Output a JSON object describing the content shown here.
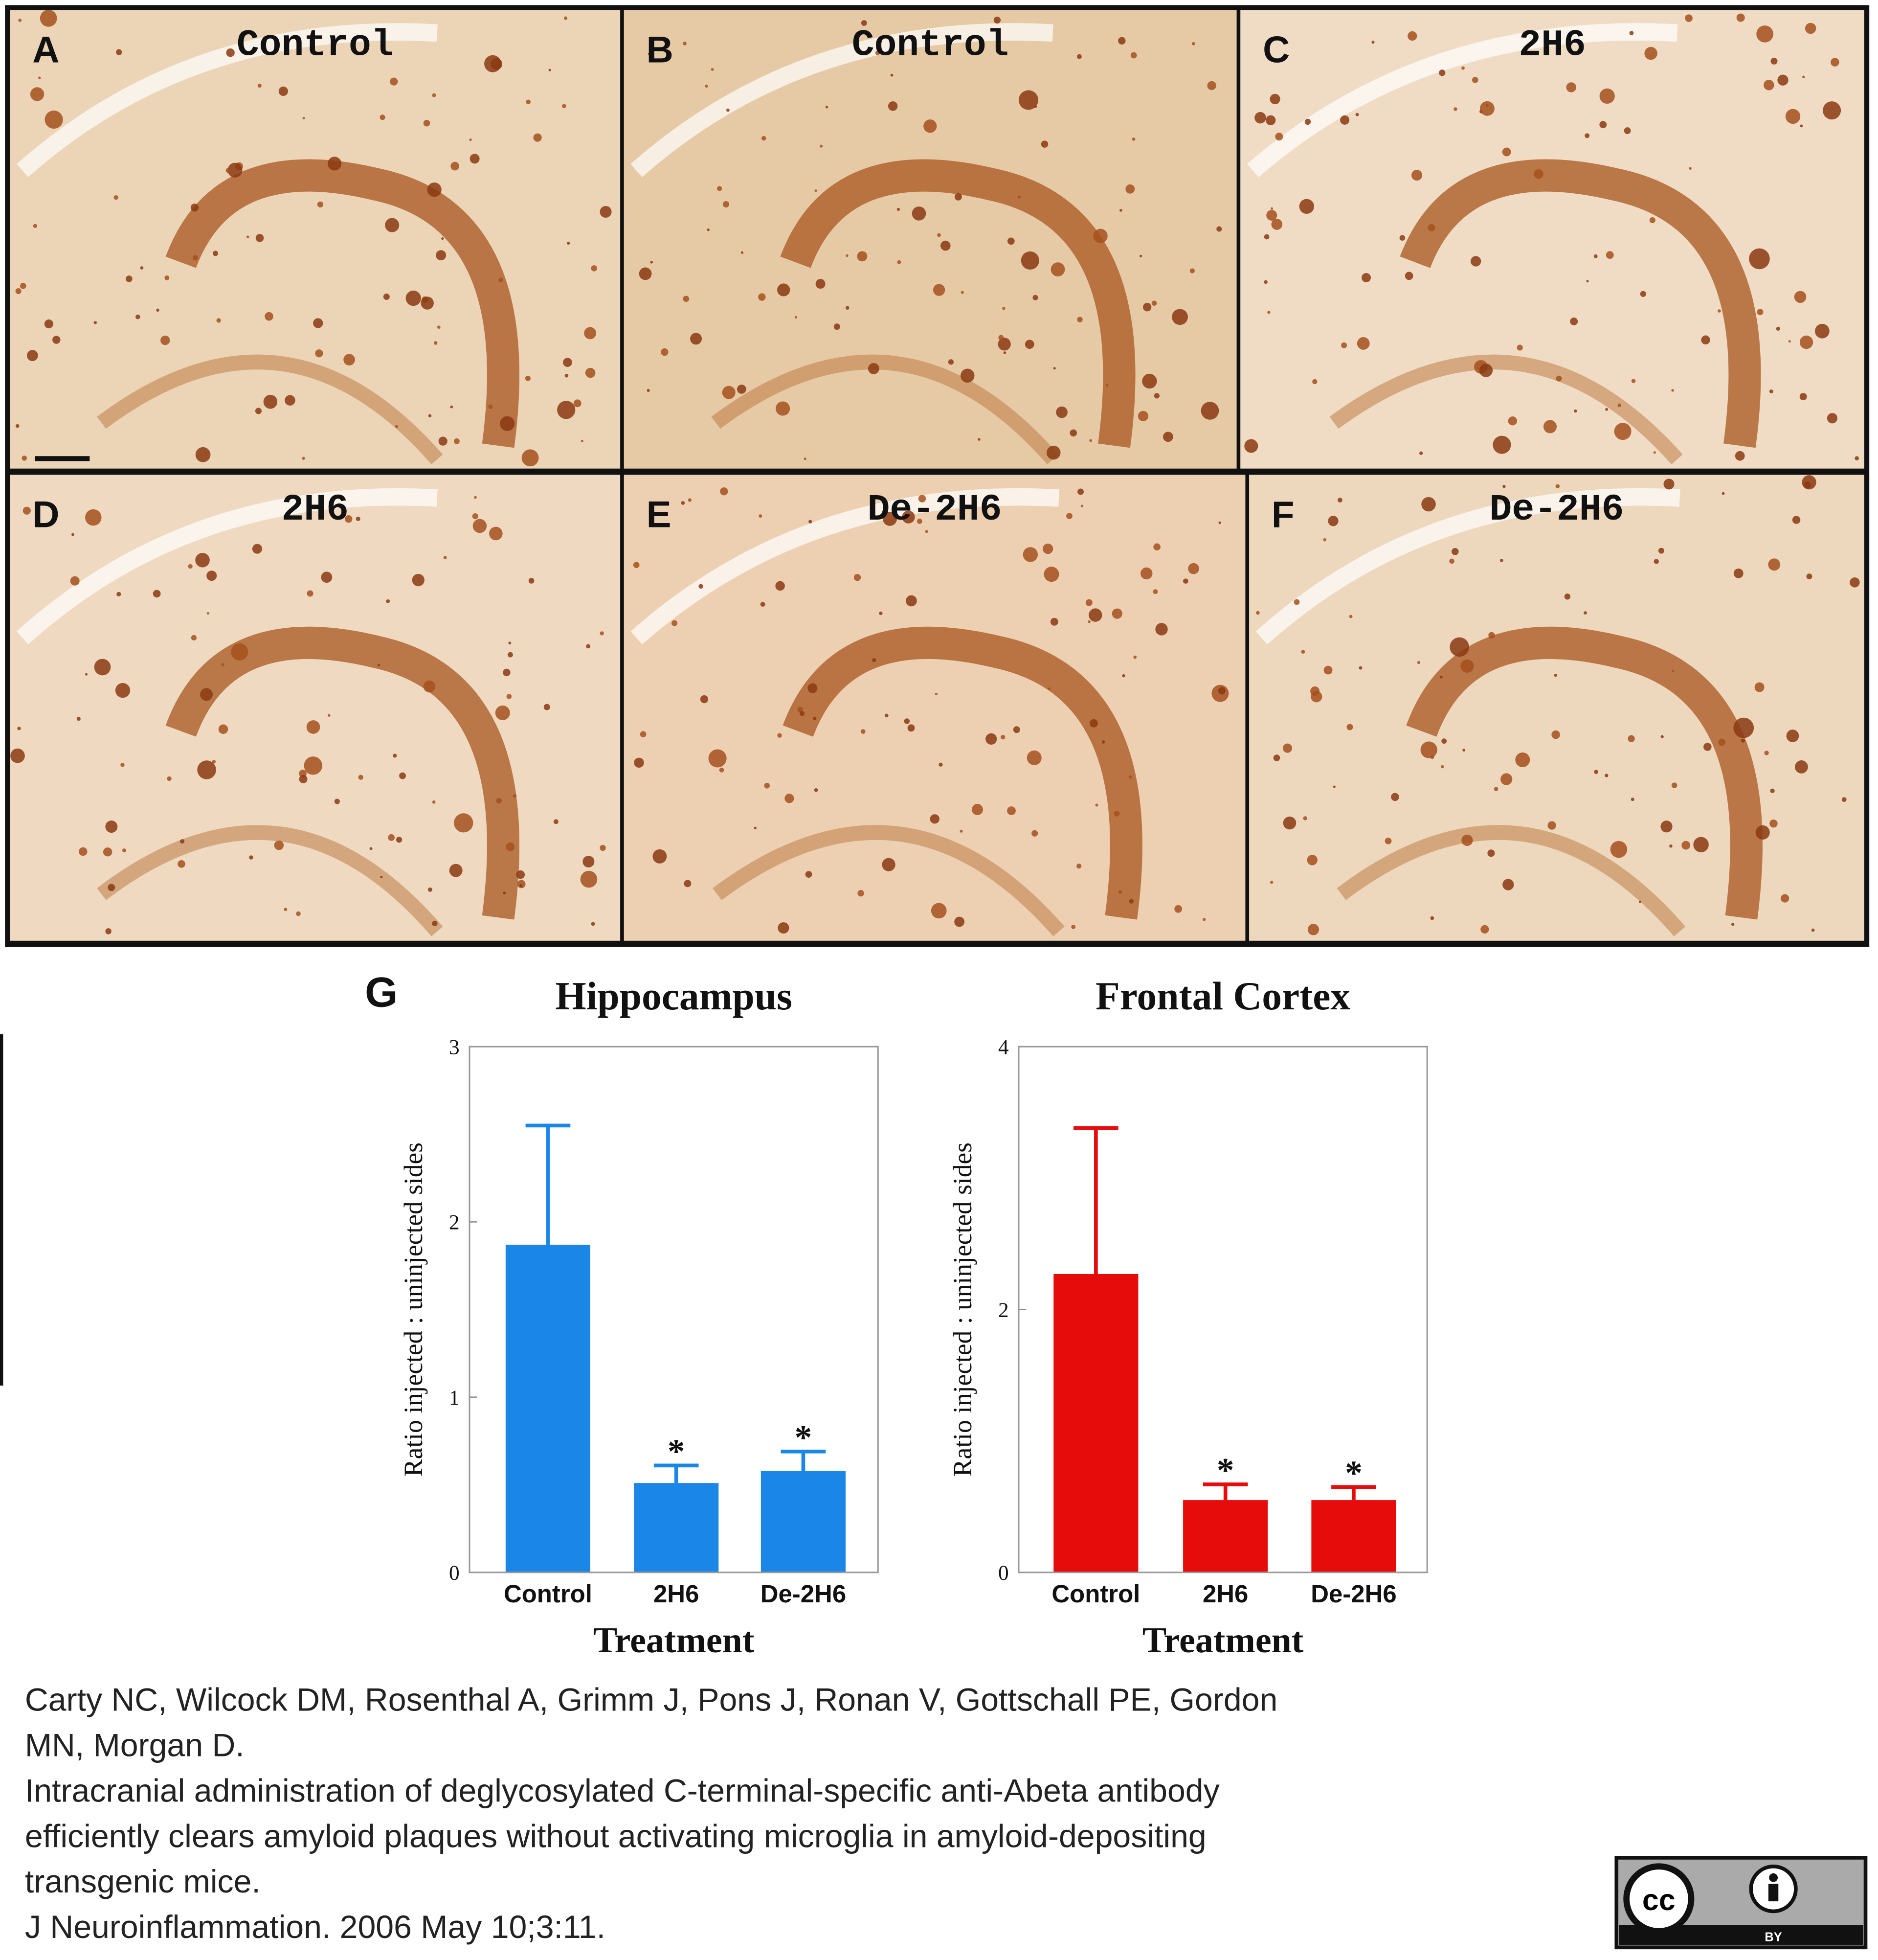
{
  "panels": [
    {
      "letter": "A",
      "label": "Control"
    },
    {
      "letter": "B",
      "label": "Control"
    },
    {
      "letter": "C",
      "label": "2H6"
    },
    {
      "letter": "D",
      "label": "2H6"
    },
    {
      "letter": "E",
      "label": "De-2H6"
    },
    {
      "letter": "F",
      "label": "De-2H6"
    }
  ],
  "figure_label": "G",
  "chart_data": [
    {
      "type": "bar",
      "title": "Hippocampus",
      "x_label": "Treatment",
      "y_label": "Ratio injected : uninjected sides",
      "categories": [
        "Control",
        "2H6",
        "De-2H6"
      ],
      "values": [
        1.87,
        0.51,
        0.58
      ],
      "errors": [
        0.68,
        0.1,
        0.11
      ],
      "annotations": [
        null,
        "*",
        "*"
      ],
      "color": "#1a86e8",
      "ylim": [
        0,
        3
      ],
      "yticks": [
        0,
        1,
        2,
        3
      ]
    },
    {
      "type": "bar",
      "title": "Frontal Cortex",
      "x_label": "Treatment",
      "y_label": "Ratio injected : uninjected sides",
      "categories": [
        "Control",
        "2H6",
        "De-2H6"
      ],
      "values": [
        2.27,
        0.55,
        0.55
      ],
      "errors": [
        1.11,
        0.12,
        0.1
      ],
      "annotations": [
        null,
        "*",
        "*"
      ],
      "color": "#e60c0c",
      "ylim": [
        0,
        4
      ],
      "yticks": [
        0,
        2,
        4
      ]
    }
  ],
  "citation": {
    "lines": [
      "Carty NC, Wilcock DM, Rosenthal A, Grimm J, Pons J, Ronan V, Gottschall PE, Gordon",
      "MN, Morgan D.",
      "Intracranial administration of deglycosylated C-terminal-specific anti-Abeta antibody",
      "efficiently clears amyloid plaques without activating microglia in amyloid-depositing",
      "transgenic mice.",
      "J Neuroinflammation. 2006 May 10;3:11."
    ]
  },
  "license": {
    "icon": "cc",
    "label": "BY"
  }
}
